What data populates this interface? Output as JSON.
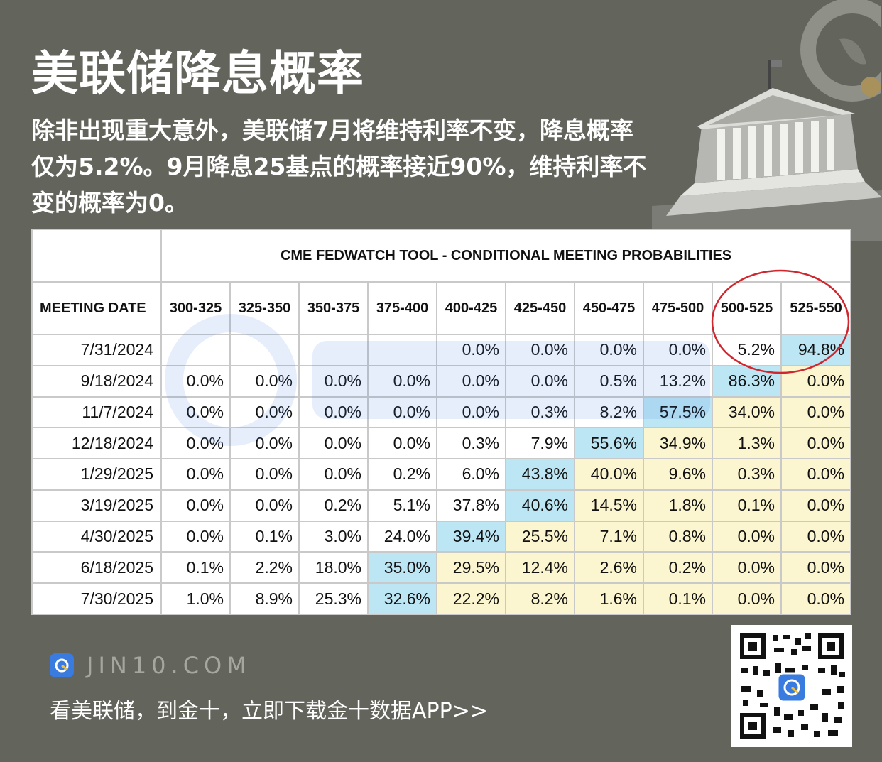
{
  "header": {
    "title": "美联储降息概率",
    "subtitle": "除非出现重大意外，美联储7月将维持利率不变，降息概率仅为5.2%。9月降息25基点的概率接近90%，维持利率不变的概率为0。"
  },
  "table": {
    "tool_title": "CME FEDWATCH TOOL - CONDITIONAL MEETING PROBABILITIES",
    "date_header": "MEETING DATE",
    "columns": [
      "300-325",
      "325-350",
      "350-375",
      "375-400",
      "400-425",
      "425-450",
      "450-475",
      "475-500",
      "500-525",
      "525-550"
    ],
    "rows": [
      {
        "date": "7/31/2024",
        "cells": [
          "",
          "",
          "",
          "",
          "0.0%",
          "0.0%",
          "0.0%",
          "0.0%",
          "5.2%",
          "94.8%"
        ],
        "hl": [
          "",
          "",
          "",
          "",
          "",
          "",
          "",
          "",
          "",
          "b"
        ]
      },
      {
        "date": "9/18/2024",
        "cells": [
          "0.0%",
          "0.0%",
          "0.0%",
          "0.0%",
          "0.0%",
          "0.0%",
          "0.5%",
          "13.2%",
          "86.3%",
          "0.0%"
        ],
        "hl": [
          "",
          "",
          "",
          "",
          "",
          "",
          "",
          "",
          "b",
          "y"
        ]
      },
      {
        "date": "11/7/2024",
        "cells": [
          "0.0%",
          "0.0%",
          "0.0%",
          "0.0%",
          "0.0%",
          "0.3%",
          "8.2%",
          "57.5%",
          "34.0%",
          "0.0%"
        ],
        "hl": [
          "",
          "",
          "",
          "",
          "",
          "",
          "",
          "b",
          "y",
          "y"
        ]
      },
      {
        "date": "12/18/2024",
        "cells": [
          "0.0%",
          "0.0%",
          "0.0%",
          "0.0%",
          "0.3%",
          "7.9%",
          "55.6%",
          "34.9%",
          "1.3%",
          "0.0%"
        ],
        "hl": [
          "",
          "",
          "",
          "",
          "",
          "",
          "b",
          "y",
          "y",
          "y"
        ]
      },
      {
        "date": "1/29/2025",
        "cells": [
          "0.0%",
          "0.0%",
          "0.0%",
          "0.2%",
          "6.0%",
          "43.8%",
          "40.0%",
          "9.6%",
          "0.3%",
          "0.0%"
        ],
        "hl": [
          "",
          "",
          "",
          "",
          "",
          "b",
          "y",
          "y",
          "y",
          "y"
        ]
      },
      {
        "date": "3/19/2025",
        "cells": [
          "0.0%",
          "0.0%",
          "0.2%",
          "5.1%",
          "37.8%",
          "40.6%",
          "14.5%",
          "1.8%",
          "0.1%",
          "0.0%"
        ],
        "hl": [
          "",
          "",
          "",
          "",
          "",
          "b",
          "y",
          "y",
          "y",
          "y"
        ]
      },
      {
        "date": "4/30/2025",
        "cells": [
          "0.0%",
          "0.1%",
          "3.0%",
          "24.0%",
          "39.4%",
          "25.5%",
          "7.1%",
          "0.8%",
          "0.0%",
          "0.0%"
        ],
        "hl": [
          "",
          "",
          "",
          "",
          "b",
          "y",
          "y",
          "y",
          "y",
          "y"
        ]
      },
      {
        "date": "6/18/2025",
        "cells": [
          "0.1%",
          "2.2%",
          "18.0%",
          "35.0%",
          "29.5%",
          "12.4%",
          "2.6%",
          "0.2%",
          "0.0%",
          "0.0%"
        ],
        "hl": [
          "",
          "",
          "",
          "b",
          "y",
          "y",
          "y",
          "y",
          "y",
          "y"
        ]
      },
      {
        "date": "7/30/2025",
        "cells": [
          "1.0%",
          "8.9%",
          "25.3%",
          "32.6%",
          "22.2%",
          "8.2%",
          "1.6%",
          "0.1%",
          "0.0%",
          "0.0%"
        ],
        "hl": [
          "",
          "",
          "",
          "b",
          "y",
          "y",
          "y",
          "y",
          "y",
          "y"
        ]
      }
    ],
    "colors": {
      "current": "#bde6f5",
      "below": "#fbf6d0",
      "ring": "#d0262e"
    }
  },
  "footer": {
    "site": "JIN10.COM",
    "cta": "看美联储，到金十，立即下载金十数据APP>>"
  }
}
